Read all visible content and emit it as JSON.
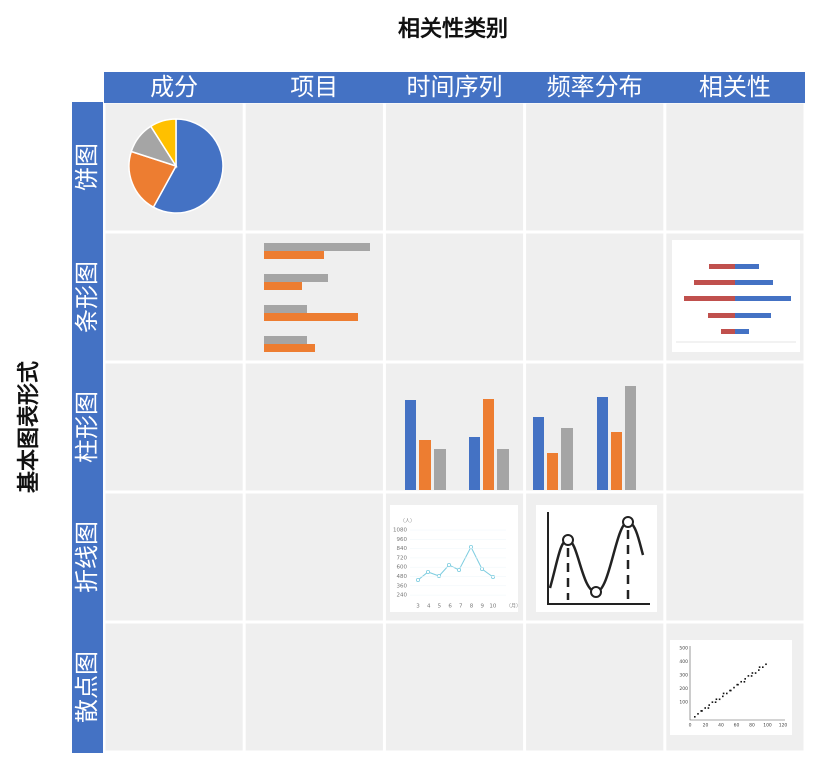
{
  "title": "相关性类别",
  "row_axis_title": "基本图表形式",
  "columns": [
    "成分",
    "项目",
    "时间序列",
    "频率分布",
    "相关性"
  ],
  "rows": [
    "饼图",
    "条形图",
    "柱形图",
    "折线图",
    "散点图"
  ],
  "line_thumbnail": {
    "y_unit": "（人）",
    "x_unit": "（月）",
    "yticks": [
      1080,
      960,
      840,
      720,
      600,
      480,
      360,
      240
    ],
    "xticks": [
      3,
      4,
      5,
      6,
      7,
      8,
      9,
      10
    ]
  },
  "scatter_thumbnail": {
    "yticks": [
      500,
      400,
      300,
      200,
      100
    ],
    "xticks": [
      0,
      20,
      40,
      60,
      80,
      100,
      120
    ]
  }
}
